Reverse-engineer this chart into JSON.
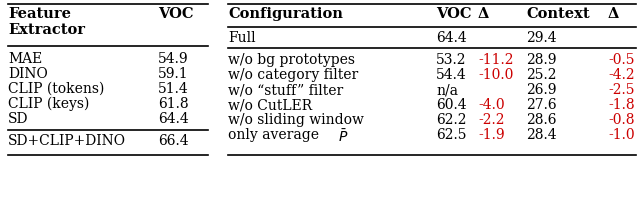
{
  "left_table": {
    "header": [
      "Feature\nExtractor",
      "VOC"
    ],
    "rows": [
      [
        "MAE",
        "54.9"
      ],
      [
        "DINO",
        "59.1"
      ],
      [
        "CLIP (tokens)",
        "51.4"
      ],
      [
        "CLIP (keys)",
        "61.8"
      ],
      [
        "SD",
        "64.4"
      ]
    ],
    "footer": [
      "SD+CLIP+DINO",
      "66.4"
    ]
  },
  "right_table": {
    "header": [
      "Configuration",
      "VOC",
      "Δ",
      "Context",
      "Δ"
    ],
    "full_row": [
      "Full",
      "64.4",
      "",
      "29.4",
      ""
    ],
    "rows": [
      [
        "w/o bg prototypes",
        "53.2",
        "-11.2",
        "28.9",
        "-0.5"
      ],
      [
        "w/o category filter",
        "54.4",
        "-10.0",
        "25.2",
        "-4.2"
      ],
      [
        "w/o “stuff” filter",
        "n/a",
        "",
        "26.9",
        "-2.5"
      ],
      [
        "w/o CutLER",
        "60.4",
        "-4.0",
        "27.6",
        "-1.8"
      ],
      [
        "w/o sliding window",
        "62.2",
        "-2.2",
        "28.6",
        "-0.8"
      ],
      [
        "only average",
        "62.5",
        "-1.9",
        "28.4",
        "-1.0"
      ]
    ]
  },
  "red_color": "#CC0000",
  "black_color": "#000000",
  "bg_color": "#FFFFFF",
  "header_fontsize": 10.5,
  "body_fontsize": 10.0,
  "line_width": 1.2
}
